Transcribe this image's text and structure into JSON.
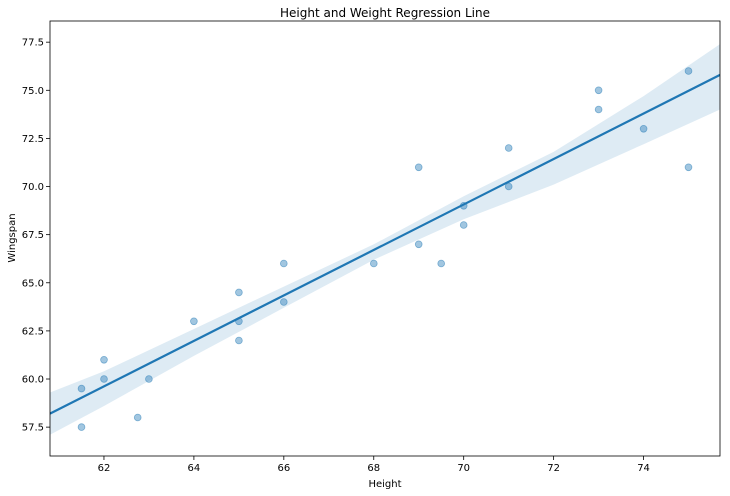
{
  "chart_data": {
    "type": "scatter",
    "title": "Height and Weight Regression Line",
    "xlabel": "Height",
    "ylabel": "Wingspan",
    "xlim": [
      60.8,
      75.7
    ],
    "ylim": [
      56.0,
      78.6
    ],
    "xticks": [
      62,
      64,
      66,
      68,
      70,
      72,
      74
    ],
    "yticks": [
      57.5,
      60.0,
      62.5,
      65.0,
      67.5,
      70.0,
      72.5,
      75.0,
      77.5
    ],
    "xtick_labels": [
      "62",
      "64",
      "66",
      "68",
      "70",
      "72",
      "74"
    ],
    "ytick_labels": [
      "57.5",
      "60.0",
      "62.5",
      "65.0",
      "67.5",
      "70.0",
      "72.5",
      "75.0",
      "77.5"
    ],
    "grid": false,
    "points": [
      {
        "x": 61.5,
        "y": 57.5
      },
      {
        "x": 61.5,
        "y": 59.5
      },
      {
        "x": 62.0,
        "y": 60.0
      },
      {
        "x": 62.0,
        "y": 61.0
      },
      {
        "x": 62.75,
        "y": 58.0
      },
      {
        "x": 63.0,
        "y": 60.0
      },
      {
        "x": 64.0,
        "y": 63.0
      },
      {
        "x": 65.0,
        "y": 64.5
      },
      {
        "x": 65.0,
        "y": 63.0
      },
      {
        "x": 65.0,
        "y": 62.0
      },
      {
        "x": 66.0,
        "y": 66.0
      },
      {
        "x": 66.0,
        "y": 64.0
      },
      {
        "x": 68.0,
        "y": 66.0
      },
      {
        "x": 69.0,
        "y": 71.0
      },
      {
        "x": 69.0,
        "y": 67.0
      },
      {
        "x": 69.5,
        "y": 66.0
      },
      {
        "x": 70.0,
        "y": 69.0
      },
      {
        "x": 70.0,
        "y": 68.0
      },
      {
        "x": 71.0,
        "y": 72.0
      },
      {
        "x": 71.0,
        "y": 70.0
      },
      {
        "x": 73.0,
        "y": 75.0
      },
      {
        "x": 73.0,
        "y": 74.0
      },
      {
        "x": 74.0,
        "y": 73.0
      },
      {
        "x": 75.0,
        "y": 76.0
      },
      {
        "x": 75.0,
        "y": 71.0
      }
    ],
    "regression_line": {
      "x": [
        60.8,
        75.7
      ],
      "y": [
        58.2,
        75.8
      ]
    },
    "confidence_band": {
      "x": [
        60.8,
        62.0,
        64.0,
        66.0,
        68.0,
        70.0,
        72.0,
        74.0,
        75.7
      ],
      "upper": [
        59.3,
        60.4,
        62.6,
        64.8,
        67.0,
        69.5,
        71.8,
        74.7,
        77.4
      ],
      "lower": [
        57.1,
        58.6,
        61.2,
        63.7,
        66.2,
        68.3,
        70.1,
        72.2,
        74.0
      ]
    },
    "colors": {
      "points": "#1f77b4",
      "line": "#1f77b4",
      "band": "#1f77b4"
    }
  }
}
